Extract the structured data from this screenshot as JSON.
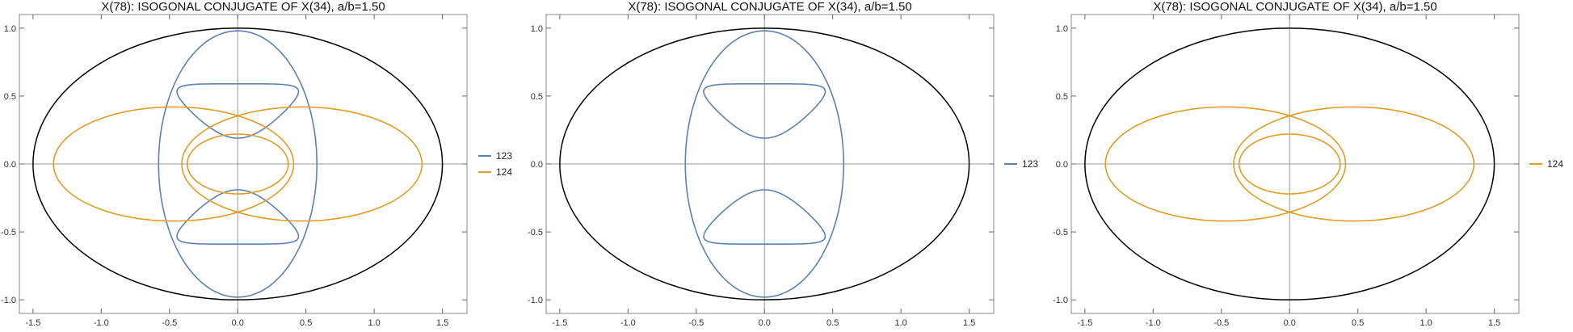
{
  "chart_data": [
    {
      "type": "line",
      "title": "X(78): ISOGONAL CONJUGATE OF X(34), a/b=1.50",
      "xlim": [
        -1.6,
        1.68
      ],
      "ylim": [
        -1.1,
        1.1
      ],
      "xticks": [
        -1.5,
        -1.0,
        -0.5,
        0.0,
        0.5,
        1.0,
        1.5
      ],
      "xtick_labels": [
        "-1.5",
        "-1.0",
        "-0.5",
        "0.0",
        "0.5",
        "1.0",
        "1.5"
      ],
      "yticks": [
        -1.0,
        -0.5,
        0.0,
        0.5,
        1.0
      ],
      "ytick_labels": [
        "-1.0",
        "-0.5",
        "0.0",
        "0.5",
        "1.0"
      ],
      "grid": false,
      "axes_through_origin": true,
      "legend_position": "right",
      "boundary": {
        "type": "ellipse",
        "a": 1.5,
        "b": 1.0,
        "color": "#000000"
      },
      "series": [
        {
          "name": "123",
          "color": "#5E81B5"
        },
        {
          "name": "124",
          "color": "#E19C24"
        }
      ]
    },
    {
      "type": "line",
      "title": "X(78): ISOGONAL CONJUGATE OF X(34), a/b=1.50",
      "xlim": [
        -1.6,
        1.68
      ],
      "ylim": [
        -1.1,
        1.1
      ],
      "xticks": [
        -1.5,
        -1.0,
        -0.5,
        0.0,
        0.5,
        1.0,
        1.5
      ],
      "xtick_labels": [
        "-1.5",
        "-1.0",
        "-0.5",
        "0.0",
        "0.5",
        "1.0",
        "1.5"
      ],
      "yticks": [
        -1.0,
        -0.5,
        0.0,
        0.5,
        1.0
      ],
      "ytick_labels": [
        "-1.0",
        "-0.5",
        "0.0",
        "0.5",
        "1.0"
      ],
      "grid": false,
      "axes_through_origin": true,
      "legend_position": "right",
      "boundary": {
        "type": "ellipse",
        "a": 1.5,
        "b": 1.0,
        "color": "#000000"
      },
      "series": [
        {
          "name": "123",
          "color": "#5E81B5"
        }
      ]
    },
    {
      "type": "line",
      "title": "X(78): ISOGONAL CONJUGATE OF X(34), a/b=1.50",
      "xlim": [
        -1.6,
        1.68
      ],
      "ylim": [
        -1.1,
        1.1
      ],
      "xticks": [
        -1.5,
        -1.0,
        -0.5,
        0.0,
        0.5,
        1.0,
        1.5
      ],
      "xtick_labels": [
        "-1.5",
        "-1.0",
        "-0.5",
        "0.0",
        "0.5",
        "1.0",
        "1.5"
      ],
      "yticks": [
        -1.0,
        -0.5,
        0.0,
        0.5,
        1.0
      ],
      "ytick_labels": [
        "-1.0",
        "-0.5",
        "0.0",
        "0.5",
        "1.0"
      ],
      "grid": false,
      "axes_through_origin": true,
      "legend_position": "right",
      "boundary": {
        "type": "ellipse",
        "a": 1.5,
        "b": 1.0,
        "color": "#000000"
      },
      "series": [
        {
          "name": "124",
          "color": "#E19C24"
        }
      ]
    }
  ]
}
